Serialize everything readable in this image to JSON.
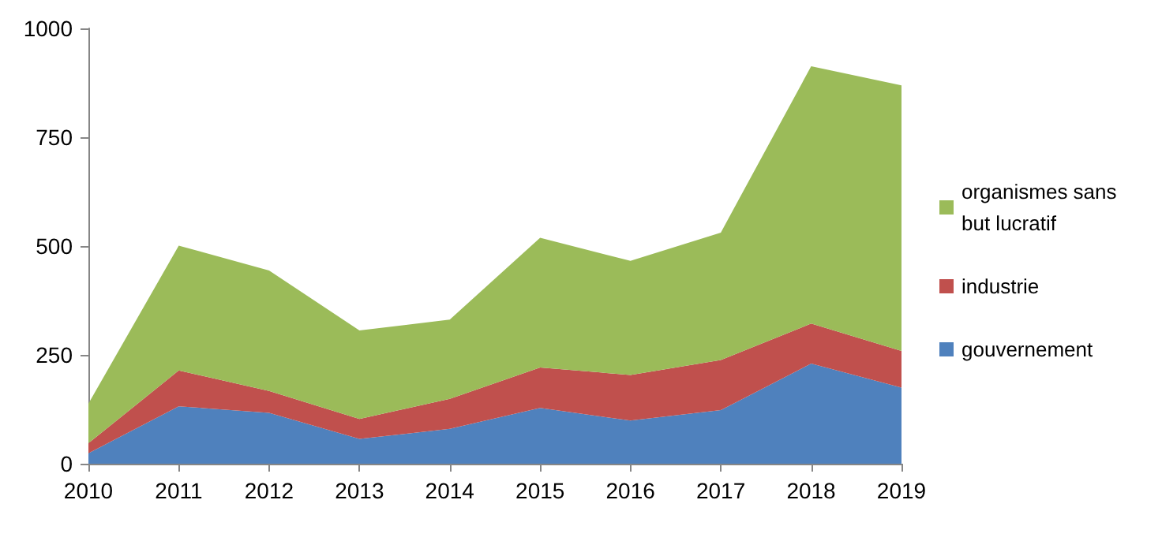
{
  "chart_data": {
    "type": "area",
    "stacked": true,
    "categories": [
      "2010",
      "2011",
      "2012",
      "2013",
      "2014",
      "2015",
      "2016",
      "2017",
      "2018",
      "2019"
    ],
    "series": [
      {
        "name": "gouvernement",
        "color": "#4f81bd",
        "values": [
          24,
          132,
          117,
          57,
          80,
          128,
          99,
          123,
          230,
          175
        ]
      },
      {
        "name": "industrie",
        "color": "#c0504d",
        "values": [
          23,
          82,
          50,
          46,
          69,
          93,
          105,
          115,
          92,
          84
        ]
      },
      {
        "name": "organismes sans but lucratif",
        "color": "#9bbb59",
        "values": [
          91,
          287,
          277,
          203,
          182,
          298,
          262,
          293,
          591,
          610
        ]
      }
    ],
    "ylim": [
      0,
      1000
    ],
    "yticks": [
      0,
      250,
      500,
      750,
      1000
    ],
    "grid": false,
    "legend": "right"
  }
}
